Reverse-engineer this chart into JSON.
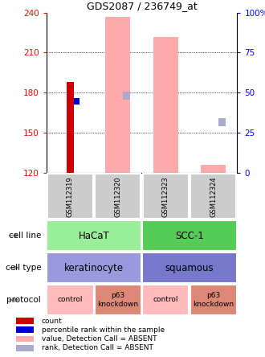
{
  "title": "GDS2087 / 236749_at",
  "samples": [
    "GSM112319",
    "GSM112320",
    "GSM112323",
    "GSM112324"
  ],
  "ylim": [
    120,
    240
  ],
  "yticks": [
    120,
    150,
    180,
    210,
    240
  ],
  "ytick_labels": [
    "120",
    "150",
    "180",
    "210",
    "240"
  ],
  "y_right_ticks": [
    120,
    150,
    180,
    210,
    240
  ],
  "y_right_labels": [
    "0",
    "25",
    "50",
    "75",
    "100%"
  ],
  "count_value": 188,
  "count_sample": 0,
  "rank_value": 173,
  "rank_sample": 0,
  "absent_value_bars": [
    null,
    237,
    222,
    126
  ],
  "absent_rank_squares": [
    null,
    178,
    null,
    158
  ],
  "colors": {
    "count": "#cc0000",
    "rank": "#0000cc",
    "absent_value": "#ffaaaa",
    "absent_rank": "#aaaacc",
    "cell_line_hacat": "#99ee99",
    "cell_line_scc1": "#55cc55",
    "cell_type_keratinocyte": "#9999dd",
    "cell_type_squamous": "#7777cc",
    "protocol_control": "#ffbbbb",
    "protocol_p63": "#dd8877",
    "sample_bg": "#cccccc"
  },
  "cell_line_spans": [
    [
      "HaCaT",
      0,
      2,
      "#99ee99"
    ],
    [
      "SCC-1",
      2,
      4,
      "#55cc55"
    ]
  ],
  "cell_type_spans": [
    [
      "keratinocyte",
      0,
      2,
      "#9999dd"
    ],
    [
      "squamous",
      2,
      4,
      "#7777cc"
    ]
  ],
  "protocol_spans": [
    [
      "control",
      0,
      1,
      "#ffbbbb"
    ],
    [
      "p63\nknockdown",
      1,
      2,
      "#dd8877"
    ],
    [
      "control",
      2,
      3,
      "#ffbbbb"
    ],
    [
      "p63\nknockdown",
      3,
      4,
      "#dd8877"
    ]
  ],
  "row_labels": [
    "cell line",
    "cell type",
    "protocol"
  ],
  "legend_items": [
    {
      "label": "count",
      "color": "#cc0000"
    },
    {
      "label": "percentile rank within the sample",
      "color": "#0000cc"
    },
    {
      "label": "value, Detection Call = ABSENT",
      "color": "#ffaaaa"
    },
    {
      "label": "rank, Detection Call = ABSENT",
      "color": "#aaaacc"
    }
  ]
}
